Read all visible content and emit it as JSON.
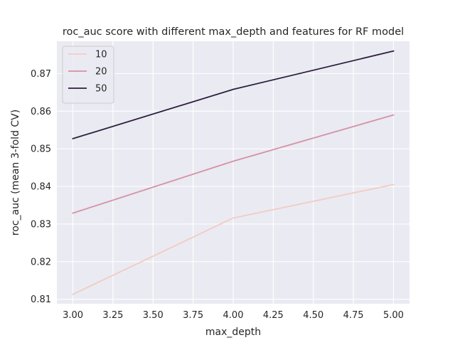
{
  "chart_data": {
    "type": "line",
    "title": "roc_auc score with different max_depth and features for RF model",
    "xlabel": "max_depth",
    "ylabel": "roc_auc (mean 3-fold CV)",
    "x": [
      3,
      4,
      5
    ],
    "xlim": [
      2.9,
      5.1
    ],
    "ylim": [
      0.8088,
      0.8786
    ],
    "xticks": [
      "3.00",
      "3.25",
      "3.50",
      "3.75",
      "4.00",
      "4.25",
      "4.50",
      "4.75",
      "5.00"
    ],
    "yticks": [
      "0.81",
      "0.82",
      "0.83",
      "0.84",
      "0.85",
      "0.86",
      "0.87"
    ],
    "grid": true,
    "legend_position": "top-left",
    "series": [
      {
        "name": "10",
        "color": "#f3cbc3",
        "values": [
          0.8113,
          0.8316,
          0.8405
        ]
      },
      {
        "name": "20",
        "color": "#d591a5",
        "values": [
          0.8329,
          0.8467,
          0.859
        ]
      },
      {
        "name": "50",
        "color": "#2c1e3d",
        "values": [
          0.8527,
          0.8658,
          0.876
        ]
      }
    ],
    "background": "#eaeaf2",
    "gridColor": "#ffffff"
  }
}
